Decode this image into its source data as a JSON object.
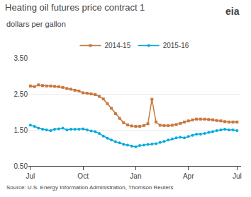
{
  "chart_data": {
    "type": "line",
    "title": "Heating oil futures price contract 1",
    "subtitle": "dollars per gallon",
    "source": "Source: U.S. Energy Information Administration, Thomson Reuters",
    "annotations": [
      "eia"
    ],
    "x": [
      0,
      1,
      2,
      3,
      4,
      5,
      6,
      7,
      8,
      9,
      10,
      11,
      12,
      13,
      14,
      15,
      16,
      17,
      18,
      19,
      20,
      21,
      22,
      23,
      24,
      25,
      26,
      27,
      28,
      29,
      30,
      31,
      32,
      33,
      34,
      35,
      36,
      37,
      38,
      39,
      40,
      41,
      42,
      43,
      44,
      45,
      46,
      47,
      48,
      49,
      50,
      51
    ],
    "series": [
      {
        "name": "2014-15",
        "color": "#c8783c",
        "marker": "square",
        "values": [
          2.72,
          2.7,
          2.75,
          2.73,
          2.72,
          2.72,
          2.71,
          2.7,
          2.68,
          2.65,
          2.63,
          2.6,
          2.58,
          2.53,
          2.52,
          2.5,
          2.48,
          2.43,
          2.36,
          2.23,
          2.1,
          1.95,
          1.82,
          1.7,
          1.64,
          1.61,
          1.6,
          1.6,
          1.62,
          1.67,
          2.35,
          1.72,
          1.63,
          1.62,
          1.62,
          1.63,
          1.65,
          1.68,
          1.72,
          1.75,
          1.78,
          1.8,
          1.8,
          1.8,
          1.79,
          1.78,
          1.76,
          1.75,
          1.73,
          1.72,
          1.72,
          1.72
        ]
      },
      {
        "name": "2015-16",
        "color": "#00aadd",
        "marker": "circle",
        "values": [
          1.63,
          1.6,
          1.55,
          1.52,
          1.5,
          1.48,
          1.52,
          1.53,
          1.55,
          1.5,
          1.52,
          1.52,
          1.52,
          1.53,
          1.5,
          1.47,
          1.45,
          1.4,
          1.33,
          1.27,
          1.22,
          1.17,
          1.14,
          1.1,
          1.08,
          1.05,
          1.03,
          1.07,
          1.08,
          1.1,
          1.11,
          1.12,
          1.15,
          1.18,
          1.22,
          1.25,
          1.28,
          1.3,
          1.28,
          1.32,
          1.35,
          1.38,
          1.38,
          1.4,
          1.43,
          1.45,
          1.48,
          1.5,
          1.52,
          1.5,
          1.5,
          1.48
        ]
      }
    ],
    "xlim": [
      -0.5,
      52
    ],
    "xticks": [
      {
        "value": 0,
        "label": "Jul"
      },
      {
        "value": 13,
        "label": "Oct"
      },
      {
        "value": 26,
        "label": "Jan"
      },
      {
        "value": 39,
        "label": "Apr"
      },
      {
        "value": 51,
        "label": "Jul"
      }
    ],
    "ylim": [
      0.5,
      3.5
    ],
    "yticks": [
      {
        "value": 0.5,
        "label": "0.50"
      },
      {
        "value": 1.5,
        "label": "1.50"
      },
      {
        "value": 2.5,
        "label": "2.50"
      },
      {
        "value": 3.5,
        "label": "3.50"
      }
    ],
    "grid": true,
    "legend": "top"
  }
}
